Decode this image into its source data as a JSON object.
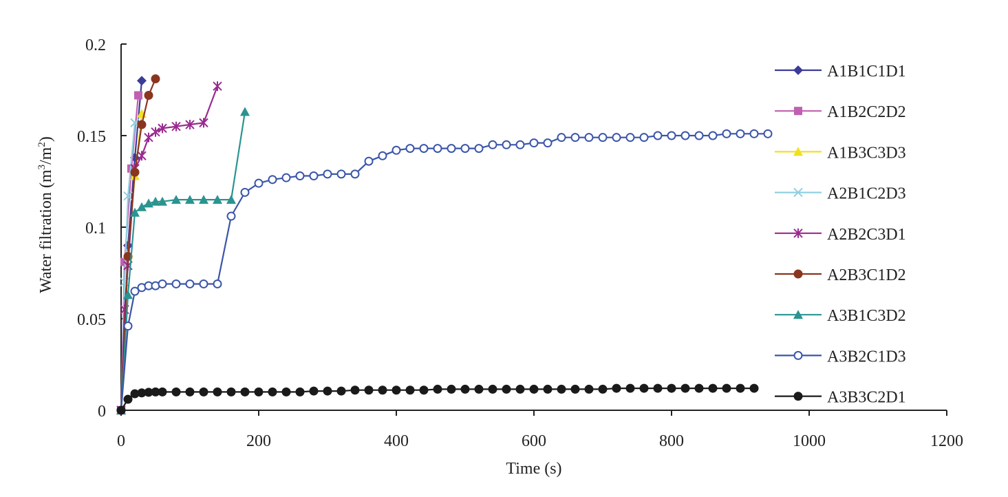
{
  "chart_data": {
    "type": "line",
    "xlabel": "Time (s)",
    "ylabel_main": "Water filtration (m",
    "ylabel_sup1": "3",
    "ylabel_mid": "/m",
    "ylabel_sup2": "2",
    "ylabel_end": ")",
    "xlim": [
      0,
      1200
    ],
    "ylim": [
      0,
      0.2
    ],
    "xticks": [
      "0",
      "200",
      "400",
      "600",
      "800",
      "1000",
      "1200"
    ],
    "yticks": [
      "0",
      "0.05",
      "0.1",
      "0.15",
      "0.2"
    ],
    "grid": false,
    "legend_position": "right",
    "series": [
      {
        "name": "A1B1C1D1",
        "color": "#3b3b9a",
        "marker": "diamond",
        "x": [
          0,
          10,
          20,
          30
        ],
        "y": [
          0,
          0.09,
          0.138,
          0.18
        ]
      },
      {
        "name": "A1B2C2D2",
        "color": "#c060b0",
        "marker": "square",
        "x": [
          0,
          5,
          15,
          25
        ],
        "y": [
          0,
          0.081,
          0.132,
          0.172
        ]
      },
      {
        "name": "A1B3C3D3",
        "color": "#f0e020",
        "marker": "triangle",
        "x": [
          0,
          10,
          20,
          30
        ],
        "y": [
          0,
          0.085,
          0.128,
          0.162
        ]
      },
      {
        "name": "A2B1C2D3",
        "color": "#90d0e0",
        "marker": "x",
        "x": [
          0,
          5,
          10,
          20
        ],
        "y": [
          0,
          0.07,
          0.117,
          0.157
        ]
      },
      {
        "name": "A2B2C3D1",
        "color": "#9a2a90",
        "marker": "star",
        "x": [
          0,
          5,
          10,
          20,
          30,
          40,
          50,
          60,
          80,
          100,
          120,
          140
        ],
        "y": [
          0,
          0.055,
          0.079,
          0.132,
          0.139,
          0.149,
          0.152,
          0.154,
          0.155,
          0.156,
          0.157,
          0.177
        ]
      },
      {
        "name": "A2B3C1D2",
        "color": "#8a3520",
        "marker": "circle",
        "x": [
          0,
          10,
          20,
          30,
          40,
          50
        ],
        "y": [
          0,
          0.084,
          0.13,
          0.156,
          0.172,
          0.181
        ]
      },
      {
        "name": "A3B1C3D2",
        "color": "#2a9490",
        "marker": "triangle",
        "x": [
          0,
          10,
          20,
          30,
          40,
          50,
          60,
          80,
          100,
          120,
          140,
          160,
          180
        ],
        "y": [
          0,
          0.063,
          0.108,
          0.111,
          0.113,
          0.114,
          0.114,
          0.115,
          0.115,
          0.115,
          0.115,
          0.115,
          0.163
        ]
      },
      {
        "name": "A3B2C1D3",
        "color": "#3a55a8",
        "marker": "circle-open",
        "x": [
          0,
          10,
          20,
          30,
          40,
          50,
          60,
          80,
          100,
          120,
          140,
          160,
          180,
          200,
          220,
          240,
          260,
          280,
          300,
          320,
          340,
          360,
          380,
          400,
          420,
          440,
          460,
          480,
          500,
          520,
          540,
          560,
          580,
          600,
          620,
          640,
          660,
          680,
          700,
          720,
          740,
          760,
          780,
          800,
          820,
          840,
          860,
          880,
          900,
          920,
          940
        ],
        "y": [
          0,
          0.046,
          0.065,
          0.067,
          0.068,
          0.068,
          0.069,
          0.069,
          0.069,
          0.069,
          0.069,
          0.106,
          0.119,
          0.124,
          0.126,
          0.127,
          0.128,
          0.128,
          0.129,
          0.129,
          0.129,
          0.136,
          0.139,
          0.142,
          0.143,
          0.143,
          0.143,
          0.143,
          0.143,
          0.143,
          0.145,
          0.145,
          0.145,
          0.146,
          0.146,
          0.149,
          0.149,
          0.149,
          0.149,
          0.149,
          0.149,
          0.149,
          0.15,
          0.15,
          0.15,
          0.15,
          0.15,
          0.151,
          0.151,
          0.151,
          0.151
        ]
      },
      {
        "name": "A3B3C2D1",
        "color": "#1a1a1a",
        "marker": "circle",
        "x": [
          0,
          10,
          20,
          30,
          40,
          50,
          60,
          80,
          100,
          120,
          140,
          160,
          180,
          200,
          220,
          240,
          260,
          280,
          300,
          320,
          340,
          360,
          380,
          400,
          420,
          440,
          460,
          480,
          500,
          520,
          540,
          560,
          580,
          600,
          620,
          640,
          660,
          680,
          700,
          720,
          740,
          760,
          780,
          800,
          820,
          840,
          860,
          880,
          900,
          920
        ],
        "y": [
          0,
          0.006,
          0.009,
          0.0095,
          0.0098,
          0.01,
          0.01,
          0.01,
          0.01,
          0.01,
          0.01,
          0.01,
          0.01,
          0.01,
          0.01,
          0.01,
          0.01,
          0.0105,
          0.0105,
          0.0105,
          0.011,
          0.011,
          0.011,
          0.011,
          0.011,
          0.011,
          0.0115,
          0.0115,
          0.0115,
          0.0115,
          0.0115,
          0.0115,
          0.0115,
          0.0115,
          0.0115,
          0.0115,
          0.0115,
          0.0115,
          0.0115,
          0.012,
          0.012,
          0.012,
          0.012,
          0.012,
          0.012,
          0.012,
          0.012,
          0.012,
          0.012,
          0.012
        ]
      }
    ]
  }
}
